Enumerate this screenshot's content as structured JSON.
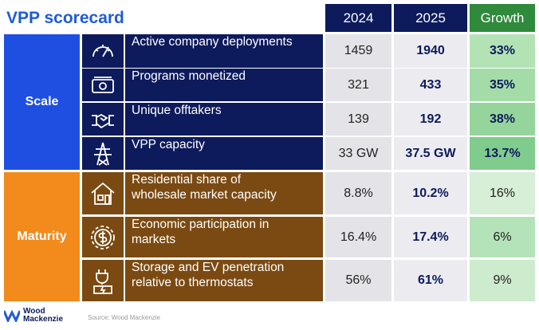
{
  "header": {
    "title": "VPP scorecard",
    "columns": [
      "2024",
      "2025",
      "Growth"
    ]
  },
  "groups": [
    {
      "label": "Scale",
      "rows": [
        {
          "metric": [
            "Active company deployments"
          ],
          "y2024": "1459",
          "y2025": "1940",
          "growth": "33%"
        },
        {
          "metric": [
            "Programs monetized"
          ],
          "y2024": "321",
          "y2025": "433",
          "growth": "35%"
        },
        {
          "metric": [
            "Unique offtakers"
          ],
          "y2024": "139",
          "y2025": "192",
          "growth": "38%"
        },
        {
          "metric": [
            "VPP capacity"
          ],
          "y2024": "33 GW",
          "y2025": "37.5 GW",
          "growth": "13.7%"
        }
      ]
    },
    {
      "label": "Maturity",
      "rows": [
        {
          "metric": [
            "Residential share of",
            "wholesale market capacity"
          ],
          "y2024": "8.8%",
          "y2025": "10.2%",
          "growth": "16%"
        },
        {
          "metric": [
            "Economic participation in",
            "markets"
          ],
          "y2024": "16.4%",
          "y2025": "17.4%",
          "growth": "6%"
        },
        {
          "metric": [
            "Storage and EV penetration",
            "relative to thermostats"
          ],
          "y2024": "56%",
          "y2025": "61%",
          "growth": "9%"
        }
      ]
    }
  ],
  "footer": {
    "logo": [
      "Wood",
      "Mackenzie"
    ],
    "source": "Source: Wood Mackenzie"
  }
}
